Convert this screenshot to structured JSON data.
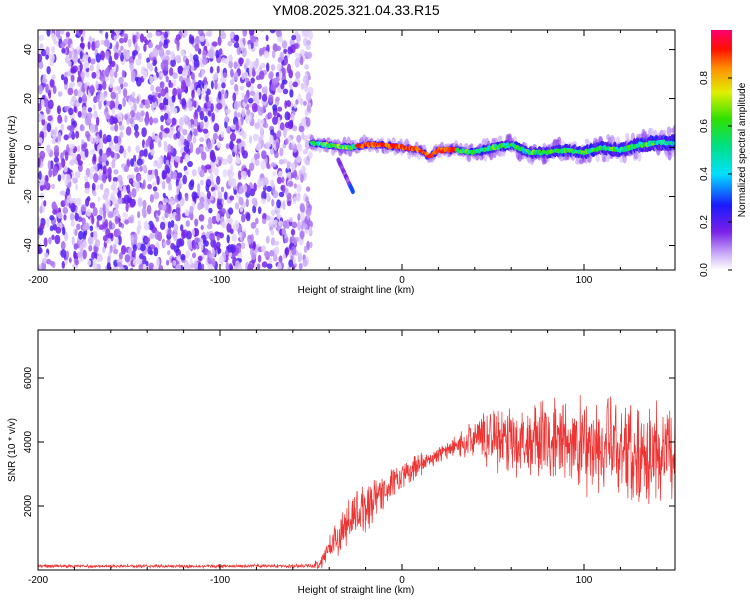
{
  "title": "YM08.2025.321.04.33.R15",
  "chart_data": [
    {
      "type": "heatmap",
      "xlabel": "Height of straight line (km)",
      "ylabel": "Frequency (Hz)",
      "xlim": [
        -200,
        150
      ],
      "ylim": [
        -50,
        48
      ],
      "xticks": [
        -200,
        -100,
        0,
        100
      ],
      "yticks": [
        -40,
        -20,
        0,
        20,
        40
      ],
      "colorbar": {
        "label": "Normalized spectral amplitude",
        "range": [
          0,
          1
        ],
        "ticks": [
          "0.0",
          "0.2",
          "0.4",
          "0.6",
          "0.8"
        ]
      },
      "regions": [
        {
          "name": "broadband noise",
          "x": [
            -200,
            -50
          ],
          "frequency": [
            -50,
            48
          ],
          "amplitude": "low-moderate"
        },
        {
          "name": "main return ridge",
          "x": [
            -50,
            150
          ],
          "frequency_center": 0,
          "amplitude_peak": 1.0
        },
        {
          "name": "secondary branch",
          "x": [
            -35,
            -27
          ],
          "frequency": [
            -5,
            -18
          ]
        }
      ],
      "ridge_profile": {
        "x": [
          -50,
          -40,
          -30,
          -20,
          -10,
          0,
          10,
          15,
          20,
          30,
          40,
          50,
          60,
          70,
          80,
          90,
          100,
          110,
          120,
          130,
          140,
          150
        ],
        "frequency": [
          2,
          1,
          0,
          1,
          1,
          0,
          -1,
          -4,
          -1,
          -1,
          -2,
          0,
          1,
          -2,
          -2,
          -1,
          -2,
          0,
          -1,
          1,
          2,
          2
        ]
      }
    },
    {
      "type": "line",
      "xlabel": "Height of straight line (km)",
      "ylabel": "SNR (10 * v/v)",
      "xlim": [
        -200,
        150
      ],
      "ylim": [
        0,
        7500
      ],
      "xticks": [
        -200,
        -100,
        0,
        100
      ],
      "yticks": [
        2000,
        4000,
        6000
      ],
      "series": [
        {
          "name": "SNR",
          "color": "#ee3333",
          "envelope": {
            "x": [
              -200,
              -100,
              -50,
              -45,
              -40,
              -35,
              -30,
              -25,
              -20,
              -10,
              0,
              10,
              20,
              30,
              40,
              50,
              60,
              70,
              80,
              90,
              100,
              110,
              120,
              130,
              140,
              150
            ],
            "mean": [
              120,
              120,
              130,
              200,
              700,
              1100,
              1400,
              1700,
              2000,
              2500,
              2900,
              3300,
              3600,
              3900,
              4100,
              4200,
              4100,
              4000,
              4000,
              3950,
              3900,
              3800,
              3800,
              3700,
              3700,
              3700
            ],
            "amplitude": [
              60,
              60,
              70,
              250,
              500,
              700,
              900,
              1000,
              1000,
              700,
              500,
              400,
              300,
              350,
              800,
              1200,
              1300,
              1500,
              1600,
              1700,
              1800,
              1900,
              2000,
              2000,
              1900,
              1900
            ]
          }
        }
      ]
    }
  ]
}
